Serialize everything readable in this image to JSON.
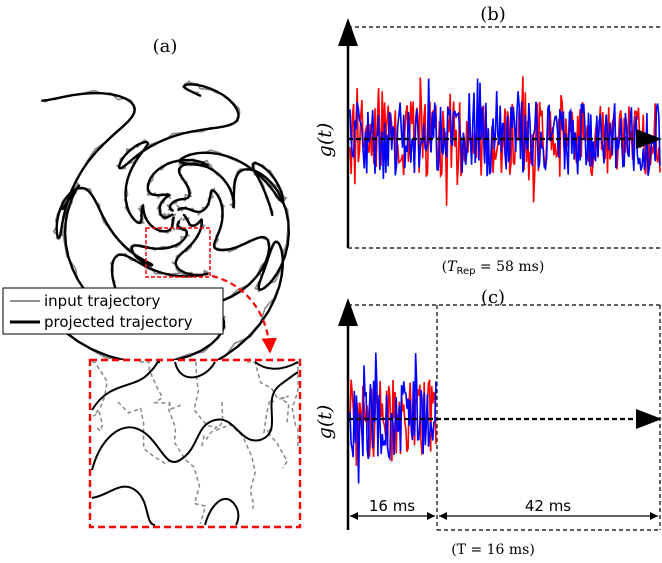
{
  "figure": {
    "panels": {
      "a": {
        "label": "(a)"
      },
      "b": {
        "label": "(b)",
        "ylabel": "g(t)",
        "caption_pre": "(",
        "caption_sym": "T",
        "caption_sub": "Rep",
        "caption_post": " = 58 ms)"
      },
      "c": {
        "label": "(c)",
        "ylabel": "g(t)",
        "caption": "(T = 16 ms)",
        "span1": "16 ms",
        "span2": "42 ms"
      }
    },
    "legend": {
      "items": [
        {
          "label": "input trajectory",
          "color": "#808080"
        },
        {
          "label": "projected trajectory",
          "color": "#000000"
        }
      ]
    },
    "colors": {
      "series_red": "#ff0000",
      "series_blue": "#0000ff",
      "zoom_box": "#ff0000",
      "axis": "#000000"
    }
  }
}
